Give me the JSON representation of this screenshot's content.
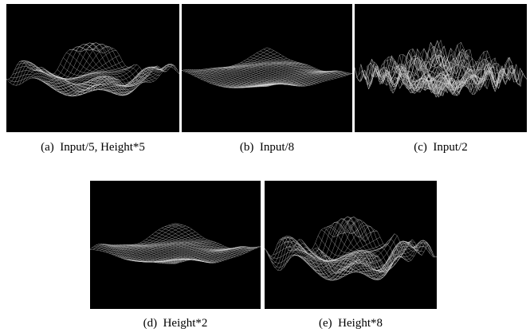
{
  "figure": {
    "panels": [
      {
        "label": "(a)",
        "caption": "Input/5, Height*5"
      },
      {
        "label": "(b)",
        "caption": "Input/8"
      },
      {
        "label": "(c)",
        "caption": "Input/2"
      },
      {
        "label": "(d)",
        "caption": "Height*2"
      },
      {
        "label": "(e)",
        "caption": "Height*8"
      }
    ]
  }
}
